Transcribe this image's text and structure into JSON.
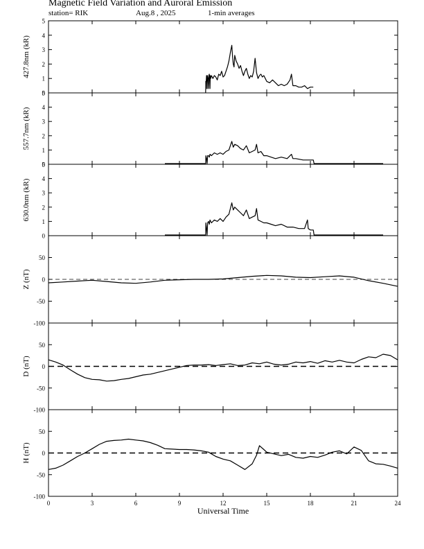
{
  "header": {
    "title": "Magnetic Field Variation and Auroral Emission",
    "station": "station= RIK",
    "date": "Aug.8 , 2025",
    "averaging": "1-min averages"
  },
  "chart_data": {
    "type": "line",
    "xlabel": "Universal Time",
    "xlim": [
      0,
      24
    ],
    "xticks": [
      0,
      3,
      6,
      9,
      12,
      15,
      18,
      21,
      24
    ],
    "panels": [
      {
        "id": "p4278",
        "ylabel": "427.8nm (kR)",
        "ylim": [
          0,
          5
        ],
        "yticks": [
          0,
          1,
          2,
          3,
          4,
          5
        ],
        "zero_line": false,
        "series": [
          {
            "x": [
              10.8,
              10.81,
              10.84,
              10.86,
              10.88,
              10.9,
              10.92,
              10.96,
              11.0,
              11.02,
              11.05,
              11.07,
              11.1,
              11.12,
              11.15,
              11.2,
              11.3,
              11.4,
              11.5,
              11.6,
              11.7,
              11.8,
              11.9,
              12.0,
              12.1,
              12.2,
              12.3,
              12.4,
              12.5,
              12.6,
              12.65,
              12.7,
              12.75,
              12.8,
              12.9,
              13.0,
              13.1,
              13.2,
              13.3,
              13.4,
              13.5,
              13.6,
              13.7,
              13.8,
              13.9,
              14.0,
              14.1,
              14.2,
              14.3,
              14.4,
              14.5,
              14.6,
              14.7,
              14.8,
              14.9,
              15.0,
              15.2,
              15.4,
              15.6,
              15.8,
              16.0,
              16.2,
              16.4,
              16.6,
              16.7,
              16.8,
              17.0,
              17.2,
              17.4,
              17.6,
              17.8,
              18.0,
              18.1,
              18.2
            ],
            "y": [
              0,
              0.8,
              0.8,
              1.2,
              0.3,
              0.3,
              1.2,
              1.0,
              0.3,
              1.2,
              1.3,
              1.0,
              0.3,
              1.2,
              1.0,
              1.2,
              1.0,
              1.2,
              1.1,
              0.9,
              1.3,
              1.2,
              1.5,
              1.1,
              1.2,
              1.5,
              1.8,
              2.2,
              2.8,
              3.3,
              2.5,
              2.0,
              1.8,
              2.6,
              2.2,
              2.0,
              1.7,
              1.9,
              1.5,
              1.2,
              1.5,
              1.7,
              1.3,
              1.0,
              1.2,
              1.1,
              1.5,
              2.4,
              1.4,
              1.0,
              1.2,
              1.3,
              1.1,
              1.2,
              1.0,
              0.8,
              0.7,
              0.9,
              0.7,
              0.5,
              0.6,
              0.5,
              0.6,
              0.9,
              1.3,
              0.5,
              0.5,
              0.4,
              0.4,
              0.5,
              0.3,
              0.4,
              0.4,
              0.4
            ]
          }
        ]
      },
      {
        "id": "p5577",
        "ylabel": "557.7nm (kR)",
        "ylim": [
          0,
          5
        ],
        "yticks": [
          0,
          1,
          2,
          3,
          4,
          5
        ],
        "zero_line": false,
        "series": [
          {
            "x": [
              8.0,
              10.8,
              10.82,
              10.86,
              10.9,
              10.94,
              11.0,
              11.05,
              11.1,
              11.2,
              11.4,
              11.6,
              11.8,
              12.0,
              12.2,
              12.4,
              12.6,
              12.7,
              12.8,
              13.0,
              13.2,
              13.4,
              13.6,
              13.8,
              14.0,
              14.2,
              14.3,
              14.4,
              14.6,
              14.8,
              15.0,
              15.3,
              15.6,
              16.0,
              16.4,
              16.7,
              16.8,
              17.0,
              17.5,
              18.0,
              18.2,
              18.25,
              19.0,
              23.0
            ],
            "y": [
              0.05,
              0.05,
              0.6,
              0.4,
              0.05,
              0.6,
              0.6,
              0.5,
              0.7,
              0.6,
              0.8,
              0.7,
              0.8,
              0.7,
              0.9,
              1.0,
              1.6,
              1.2,
              1.4,
              1.3,
              1.1,
              1.0,
              1.3,
              0.8,
              0.9,
              1.0,
              1.4,
              0.8,
              0.9,
              0.6,
              0.6,
              0.5,
              0.4,
              0.5,
              0.4,
              0.7,
              0.4,
              0.4,
              0.3,
              0.3,
              0.3,
              0.05,
              0.05,
              0.05
            ]
          }
        ]
      },
      {
        "id": "p6300",
        "ylabel": "630.0nm (kR)",
        "ylim": [
          0,
          5
        ],
        "yticks": [
          0,
          1,
          2,
          3,
          4,
          5
        ],
        "zero_line": false,
        "series": [
          {
            "x": [
              8.0,
              10.8,
              10.82,
              10.86,
              10.9,
              10.94,
              11.0,
              11.05,
              11.1,
              11.2,
              11.4,
              11.6,
              11.8,
              12.0,
              12.2,
              12.4,
              12.6,
              12.7,
              12.8,
              13.0,
              13.2,
              13.4,
              13.6,
              13.8,
              14.0,
              14.2,
              14.3,
              14.4,
              14.6,
              14.8,
              15.0,
              15.3,
              15.6,
              16.0,
              16.4,
              16.8,
              17.2,
              17.6,
              17.8,
              17.85,
              18.0,
              18.2,
              18.25,
              19.0,
              23.0
            ],
            "y": [
              0.05,
              0.05,
              0.9,
              0.5,
              0.05,
              0.9,
              1.0,
              0.8,
              1.1,
              0.9,
              1.1,
              1.0,
              1.2,
              1.0,
              1.3,
              1.5,
              2.3,
              1.8,
              2.0,
              1.8,
              1.6,
              1.4,
              1.8,
              1.2,
              1.3,
              1.4,
              1.9,
              1.1,
              1.0,
              0.9,
              0.9,
              0.8,
              0.7,
              0.8,
              0.6,
              0.6,
              0.5,
              0.5,
              1.1,
              0.5,
              0.4,
              0.4,
              0.05,
              0.05,
              0.05
            ]
          }
        ]
      },
      {
        "id": "pZ",
        "ylabel": "Z (nT)",
        "ylim": [
          -100,
          100
        ],
        "yticks": [
          -100,
          -50,
          0,
          50
        ],
        "zero_line": true,
        "series": [
          {
            "x": [
              0,
              1,
              2,
              3,
              4,
              5,
              6,
              7,
              8,
              9,
              10,
              11,
              12,
              13,
              14,
              15,
              16,
              17,
              18,
              19,
              20,
              21,
              22,
              23,
              24
            ],
            "y": [
              -8,
              -6,
              -4,
              -2,
              -5,
              -8,
              -9,
              -6,
              -2,
              -1,
              0,
              0,
              1,
              4,
              7,
              9,
              8,
              5,
              4,
              6,
              8,
              5,
              -3,
              -9,
              -16
            ]
          }
        ]
      },
      {
        "id": "pD",
        "ylabel": "D (nT)",
        "ylim": [
          -100,
          100
        ],
        "yticks": [
          -100,
          -50,
          0,
          50
        ],
        "zero_line": true,
        "series": [
          {
            "x": [
              0,
              0.5,
              1,
              1.5,
              2,
              2.5,
              3,
              3.5,
              4,
              4.5,
              5,
              5.5,
              6,
              6.5,
              7,
              7.5,
              8,
              8.5,
              9,
              9.5,
              10,
              10.5,
              11,
              11.5,
              12,
              12.5,
              13,
              13.5,
              14,
              14.5,
              15,
              15.5,
              16,
              16.5,
              17,
              17.5,
              18,
              18.5,
              19,
              19.5,
              20,
              20.5,
              21,
              21.5,
              22,
              22.5,
              23,
              23.5,
              24
            ],
            "y": [
              15,
              10,
              3,
              -8,
              -18,
              -26,
              -30,
              -31,
              -34,
              -33,
              -30,
              -28,
              -24,
              -20,
              -18,
              -14,
              -10,
              -6,
              -2,
              2,
              3,
              3,
              4,
              2,
              4,
              6,
              2,
              3,
              8,
              6,
              10,
              5,
              3,
              5,
              10,
              8,
              11,
              7,
              13,
              10,
              14,
              10,
              8,
              16,
              22,
              20,
              28,
              25,
              15
            ]
          }
        ]
      },
      {
        "id": "pH",
        "ylabel": "H (nT)",
        "ylim": [
          -100,
          100
        ],
        "yticks": [
          -100,
          -50,
          0,
          50
        ],
        "zero_line": true,
        "series": [
          {
            "x": [
              0,
              0.5,
              1,
              1.5,
              2,
              2.5,
              3,
              3.5,
              4,
              4.5,
              5,
              5.5,
              6,
              6.5,
              7,
              7.5,
              8,
              8.5,
              9,
              9.5,
              10,
              10.5,
              11,
              11.5,
              12,
              12.5,
              13,
              13.5,
              14,
              14.3,
              14.5,
              14.8,
              15,
              15.5,
              16,
              16.5,
              17,
              17.5,
              18,
              18.5,
              19,
              19.5,
              20,
              20.5,
              21,
              21.5,
              22,
              22.5,
              23,
              23.5,
              24
            ],
            "y": [
              -38,
              -35,
              -28,
              -18,
              -8,
              0,
              10,
              20,
              27,
              29,
              30,
              32,
              30,
              28,
              24,
              18,
              10,
              9,
              8,
              8,
              7,
              5,
              2,
              -8,
              -14,
              -18,
              -28,
              -38,
              -25,
              -5,
              17,
              8,
              2,
              -2,
              -6,
              -3,
              -10,
              -12,
              -8,
              -10,
              -5,
              2,
              5,
              -2,
              14,
              6,
              -18,
              -25,
              -26,
              -30,
              -35
            ]
          }
        ]
      }
    ]
  }
}
